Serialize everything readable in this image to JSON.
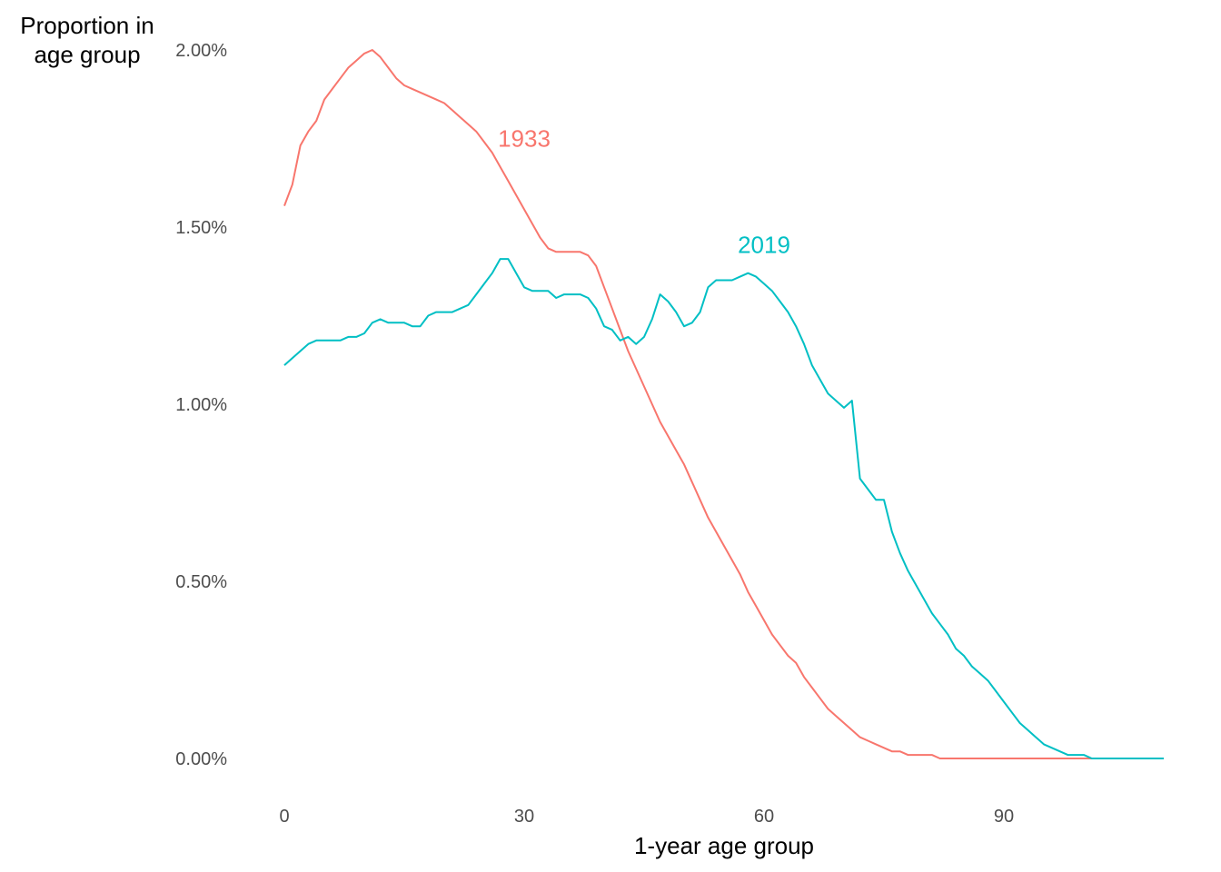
{
  "chart_data": {
    "type": "line",
    "xlabel": "1-year age group",
    "ylabel_lines": [
      "Proportion in",
      "age group"
    ],
    "xlim": [
      0,
      110
    ],
    "ylim": [
      0,
      0.02
    ],
    "x_ticks": [
      0,
      30,
      60,
      90
    ],
    "x_tick_labels": [
      "0",
      "30",
      "60",
      "90"
    ],
    "y_ticks": [
      0,
      0.005,
      0.01,
      0.015,
      0.02
    ],
    "y_tick_labels": [
      "0.00%",
      "0.50%",
      "1.00%",
      "1.50%",
      "2.00%"
    ],
    "grid": false,
    "legend": "none",
    "series": [
      {
        "name": "1933",
        "color": "#F8766D",
        "label_at": [
          30,
          0.0175
        ],
        "x": [
          0,
          1,
          2,
          3,
          4,
          5,
          6,
          7,
          8,
          9,
          10,
          11,
          12,
          13,
          14,
          15,
          16,
          17,
          18,
          19,
          20,
          21,
          22,
          23,
          24,
          25,
          26,
          27,
          28,
          29,
          30,
          31,
          32,
          33,
          34,
          35,
          36,
          37,
          38,
          39,
          40,
          41,
          42,
          43,
          44,
          45,
          46,
          47,
          48,
          49,
          50,
          51,
          52,
          53,
          54,
          55,
          56,
          57,
          58,
          59,
          60,
          61,
          62,
          63,
          64,
          65,
          66,
          67,
          68,
          69,
          70,
          71,
          72,
          73,
          74,
          75,
          76,
          77,
          78,
          79,
          80,
          81,
          82,
          83,
          84,
          85,
          86,
          87,
          88,
          89,
          90,
          91,
          92,
          93,
          94,
          95,
          96,
          97,
          98,
          99,
          100,
          101,
          102,
          103,
          104,
          105
        ],
        "y": [
          0.0156,
          0.0162,
          0.0173,
          0.0177,
          0.018,
          0.0186,
          0.0189,
          0.0192,
          0.0195,
          0.0197,
          0.0199,
          0.02,
          0.0198,
          0.0195,
          0.0192,
          0.019,
          0.0189,
          0.0188,
          0.0187,
          0.0186,
          0.0185,
          0.0183,
          0.0181,
          0.0179,
          0.0177,
          0.0174,
          0.0171,
          0.0167,
          0.0163,
          0.0159,
          0.0155,
          0.0151,
          0.0147,
          0.0144,
          0.0143,
          0.0143,
          0.0143,
          0.0143,
          0.0142,
          0.0139,
          0.0133,
          0.0127,
          0.0121,
          0.0115,
          0.011,
          0.0105,
          0.01,
          0.0095,
          0.0091,
          0.0087,
          0.0083,
          0.0078,
          0.0073,
          0.0068,
          0.0064,
          0.006,
          0.0056,
          0.0052,
          0.0047,
          0.0043,
          0.0039,
          0.0035,
          0.0032,
          0.0029,
          0.0027,
          0.0023,
          0.002,
          0.0017,
          0.0014,
          0.0012,
          0.001,
          0.0008,
          0.0006,
          0.0005,
          0.0004,
          0.0003,
          0.0002,
          0.0002,
          0.0001,
          0.0001,
          0.0001,
          0.0001,
          0.0,
          0.0,
          0.0,
          0.0,
          0.0,
          0.0,
          0.0,
          0.0,
          0.0,
          0.0,
          0.0,
          0.0,
          0.0,
          0.0,
          0.0,
          0.0,
          0.0,
          0.0,
          0.0,
          0.0,
          0.0,
          0.0,
          0.0,
          0.0
        ]
      },
      {
        "name": "2019",
        "color": "#00BFC4",
        "label_at": [
          60,
          0.0145
        ],
        "x": [
          0,
          1,
          2,
          3,
          4,
          5,
          6,
          7,
          8,
          9,
          10,
          11,
          12,
          13,
          14,
          15,
          16,
          17,
          18,
          19,
          20,
          21,
          22,
          23,
          24,
          25,
          26,
          27,
          28,
          29,
          30,
          31,
          32,
          33,
          34,
          35,
          36,
          37,
          38,
          39,
          40,
          41,
          42,
          43,
          44,
          45,
          46,
          47,
          48,
          49,
          50,
          51,
          52,
          53,
          54,
          55,
          56,
          57,
          58,
          59,
          60,
          61,
          62,
          63,
          64,
          65,
          66,
          67,
          68,
          69,
          70,
          71,
          72,
          73,
          74,
          75,
          76,
          77,
          78,
          79,
          80,
          81,
          82,
          83,
          84,
          85,
          86,
          87,
          88,
          89,
          90,
          91,
          92,
          93,
          94,
          95,
          96,
          97,
          98,
          99,
          100,
          101,
          102,
          103,
          104,
          105,
          106,
          107,
          108,
          109,
          110
        ],
        "y": [
          0.0111,
          0.0113,
          0.0115,
          0.0117,
          0.0118,
          0.0118,
          0.0118,
          0.0118,
          0.0119,
          0.0119,
          0.012,
          0.0123,
          0.0124,
          0.0123,
          0.0123,
          0.0123,
          0.0122,
          0.0122,
          0.0125,
          0.0126,
          0.0126,
          0.0126,
          0.0127,
          0.0128,
          0.0131,
          0.0134,
          0.0137,
          0.0141,
          0.0141,
          0.0137,
          0.0133,
          0.0132,
          0.0132,
          0.0132,
          0.013,
          0.0131,
          0.0131,
          0.0131,
          0.013,
          0.0127,
          0.0122,
          0.0121,
          0.0118,
          0.0119,
          0.0117,
          0.0119,
          0.0124,
          0.0131,
          0.0129,
          0.0126,
          0.0122,
          0.0123,
          0.0126,
          0.0133,
          0.0135,
          0.0135,
          0.0135,
          0.0136,
          0.0137,
          0.0136,
          0.0134,
          0.0132,
          0.0129,
          0.0126,
          0.0122,
          0.0117,
          0.0111,
          0.0107,
          0.0103,
          0.0101,
          0.0099,
          0.0101,
          0.0079,
          0.0076,
          0.0073,
          0.0073,
          0.0064,
          0.0058,
          0.0053,
          0.0049,
          0.0045,
          0.0041,
          0.0038,
          0.0035,
          0.0031,
          0.0029,
          0.0026,
          0.0024,
          0.0022,
          0.0019,
          0.0016,
          0.0013,
          0.001,
          0.0008,
          0.0006,
          0.0004,
          0.0003,
          0.0002,
          0.0001,
          0.0001,
          0.0001,
          0.0,
          0.0,
          0.0,
          0.0,
          0.0,
          0.0,
          0.0,
          0.0,
          0.0,
          0.0
        ]
      }
    ]
  }
}
